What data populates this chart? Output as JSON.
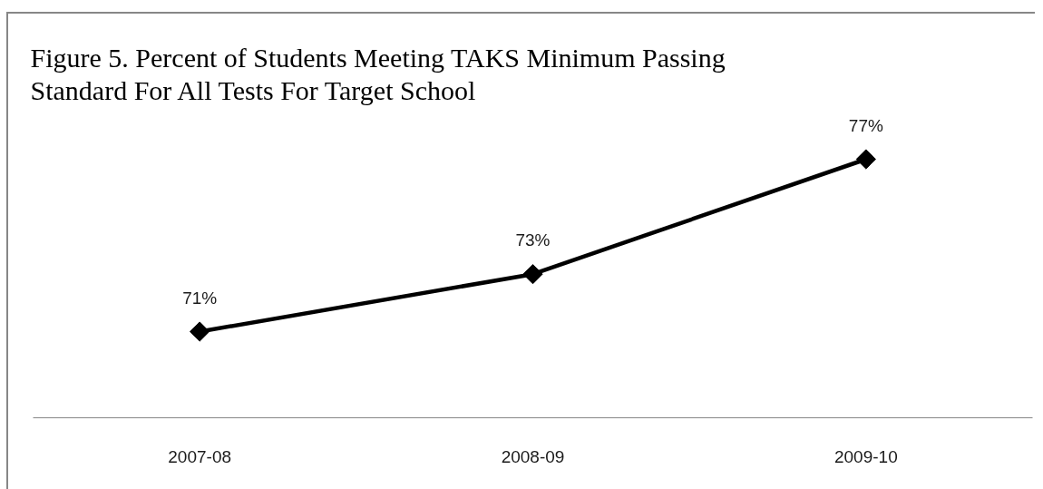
{
  "chart_data": {
    "type": "line",
    "title": "Figure 5.  Percent of Students Meeting TAKS Minimum Passing Standard For All Tests  For Target School",
    "categories": [
      "2007-08",
      "2008-09",
      "2009-10"
    ],
    "values": [
      71,
      73,
      77
    ],
    "value_labels": [
      "71%",
      "73%",
      "77%"
    ],
    "color": "#000000",
    "marker": "diamond",
    "line_style": "solid",
    "tick_labels": "x"
  }
}
